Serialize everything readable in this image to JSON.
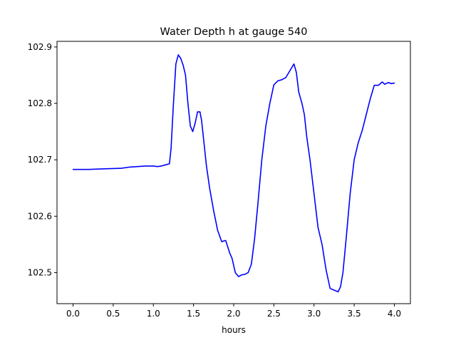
{
  "chart_data": {
    "type": "line",
    "title": "Water Depth h at gauge 540",
    "xlabel": "hours",
    "ylabel": "",
    "xlim": [
      -0.2,
      4.2
    ],
    "ylim": [
      102.445,
      102.91
    ],
    "xticks": [
      0.0,
      0.5,
      1.0,
      1.5,
      2.0,
      2.5,
      3.0,
      3.5,
      4.0
    ],
    "xtick_labels": [
      "0.0",
      "0.5",
      "1.0",
      "1.5",
      "2.0",
      "2.5",
      "3.0",
      "3.5",
      "4.0"
    ],
    "yticks": [
      102.5,
      102.6,
      102.7,
      102.8,
      102.9
    ],
    "ytick_labels": [
      "102.5",
      "102.6",
      "102.7",
      "102.8",
      "102.9"
    ],
    "grid": false,
    "series": [
      {
        "color": "#0000ff",
        "x": [
          0.0,
          0.2,
          0.4,
          0.6,
          0.7,
          0.8,
          0.9,
          1.0,
          1.05,
          1.1,
          1.15,
          1.2,
          1.22,
          1.25,
          1.28,
          1.31,
          1.34,
          1.37,
          1.4,
          1.43,
          1.46,
          1.49,
          1.52,
          1.55,
          1.58,
          1.6,
          1.63,
          1.66,
          1.7,
          1.75,
          1.8,
          1.85,
          1.9,
          1.95,
          1.98,
          2.02,
          2.06,
          2.1,
          2.14,
          2.18,
          2.22,
          2.26,
          2.3,
          2.35,
          2.4,
          2.45,
          2.5,
          2.55,
          2.6,
          2.65,
          2.7,
          2.75,
          2.78,
          2.81,
          2.85,
          2.88,
          2.91,
          2.95,
          3.0,
          3.05,
          3.1,
          3.15,
          3.2,
          3.25,
          3.3,
          3.33,
          3.36,
          3.4,
          3.45,
          3.5,
          3.55,
          3.6,
          3.65,
          3.7,
          3.75,
          3.8,
          3.85,
          3.88,
          3.91,
          3.93,
          3.96,
          4.0
        ],
        "y": [
          102.683,
          102.683,
          102.684,
          102.685,
          102.687,
          102.688,
          102.689,
          102.689,
          102.688,
          102.689,
          102.691,
          102.693,
          102.72,
          102.8,
          102.87,
          102.886,
          102.88,
          102.868,
          102.85,
          102.8,
          102.76,
          102.75,
          102.765,
          102.785,
          102.785,
          102.77,
          102.73,
          102.69,
          102.65,
          102.61,
          102.575,
          102.555,
          102.557,
          102.535,
          102.525,
          102.5,
          102.493,
          102.496,
          102.497,
          102.5,
          102.515,
          102.56,
          102.62,
          102.7,
          102.76,
          102.8,
          102.833,
          102.84,
          102.842,
          102.846,
          102.858,
          102.87,
          102.855,
          102.82,
          102.8,
          102.78,
          102.74,
          102.7,
          102.64,
          102.58,
          102.55,
          102.505,
          102.472,
          102.469,
          102.466,
          102.475,
          102.5,
          102.56,
          102.64,
          102.7,
          102.73,
          102.752,
          102.78,
          102.808,
          102.832,
          102.832,
          102.838,
          102.834,
          102.836,
          102.837,
          102.835,
          102.836
        ]
      }
    ]
  }
}
